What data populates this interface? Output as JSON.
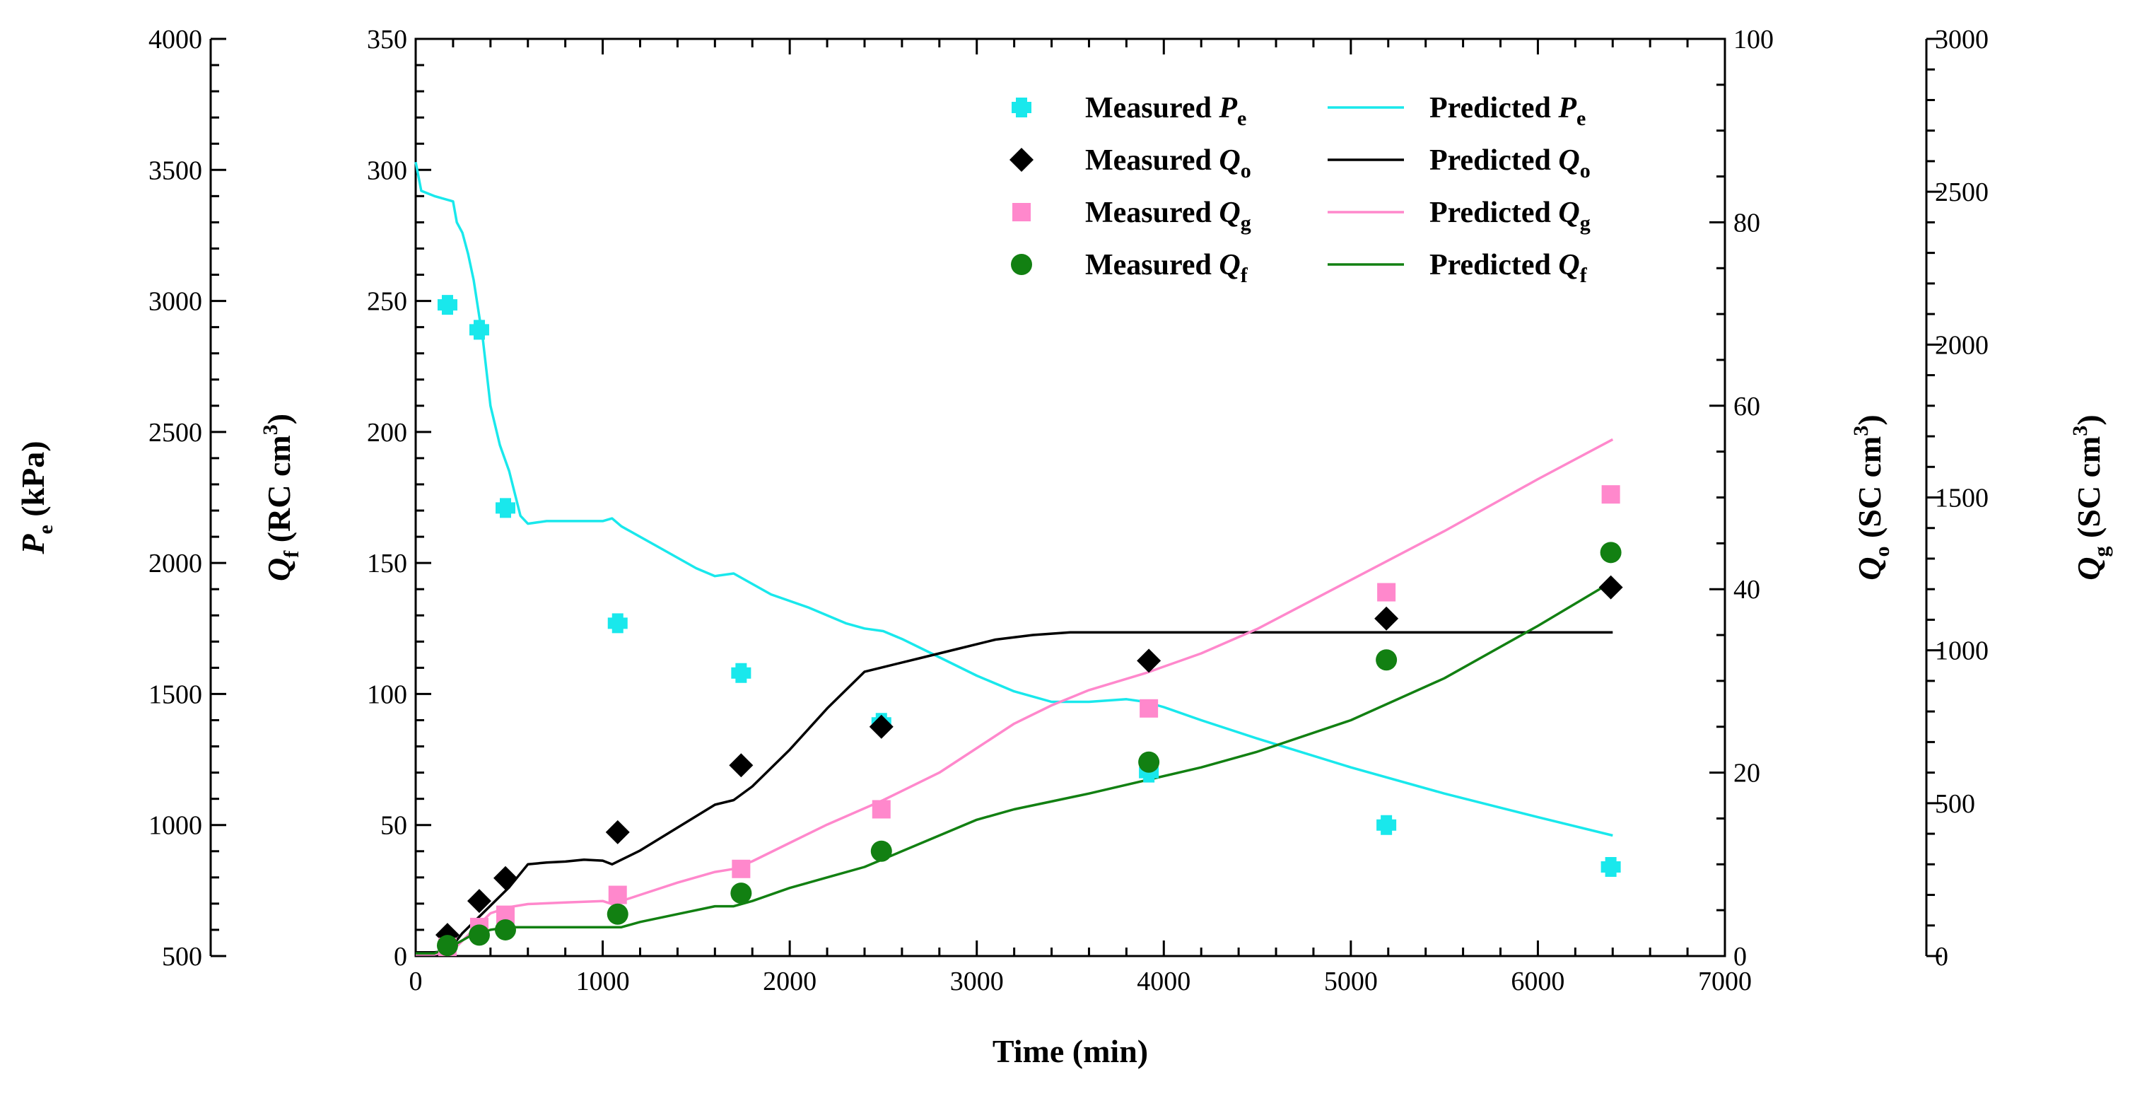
{
  "chart_data": {
    "type": "scatter+line",
    "x_axis": {
      "label": "Time (min)",
      "range": [
        0,
        7000
      ],
      "ticks": [
        0,
        1000,
        2000,
        3000,
        4000,
        5000,
        6000,
        7000
      ],
      "minor_step": 200
    },
    "axes": {
      "Pe": {
        "label_main": "P",
        "label_sub": "e",
        "label_unit": " (kPa)",
        "range": [
          500,
          4000
        ],
        "ticks": [
          500,
          1000,
          1500,
          2000,
          2500,
          3000,
          3500,
          4000
        ],
        "minor_step": 100,
        "side": "left-outer"
      },
      "Qf": {
        "label_main": "Q",
        "label_sub": "f",
        "label_unit": " (RC cm",
        "label_sup": "3",
        "label_close": ")",
        "range": [
          0,
          350
        ],
        "ticks": [
          0,
          50,
          100,
          150,
          200,
          250,
          300,
          350
        ],
        "minor_step": 10,
        "side": "left"
      },
      "Qo": {
        "label_main": "Q",
        "label_sub": "o",
        "label_unit": " (SC cm",
        "label_sup": "3",
        "label_close": ")",
        "range": [
          0,
          100
        ],
        "ticks": [
          0,
          20,
          40,
          60,
          80,
          100
        ],
        "minor_step": 5,
        "side": "right"
      },
      "Qg": {
        "label_main": "Q",
        "label_sub": "g",
        "label_unit": " (SC cm",
        "label_sup": "3",
        "label_close": ")",
        "range": [
          0,
          3000
        ],
        "ticks": [
          0,
          500,
          1000,
          1500,
          2000,
          2500,
          3000
        ],
        "minor_step": 100,
        "side": "right-outer"
      }
    },
    "legend": {
      "placement": "top-right",
      "entries": [
        {
          "key": "mPe",
          "text": "Measured ",
          "sym": "P",
          "sub": "e"
        },
        {
          "key": "pPe",
          "text": "Predicted ",
          "sym": "P",
          "sub": "e"
        },
        {
          "key": "mQo",
          "text": "Measured ",
          "sym": "Q",
          "sub": "o"
        },
        {
          "key": "pQo",
          "text": "Predicted ",
          "sym": "Q",
          "sub": "o"
        },
        {
          "key": "mQg",
          "text": "Measured ",
          "sym": "Q",
          "sub": "g"
        },
        {
          "key": "pQg",
          "text": "Predicted ",
          "sym": "Q",
          "sub": "g"
        },
        {
          "key": "mQf",
          "text": "Measured ",
          "sym": "Q",
          "sub": "f"
        },
        {
          "key": "pQf",
          "text": "Predicted ",
          "sym": "Q",
          "sub": "f"
        }
      ]
    },
    "colors": {
      "Pe": "#19e8ec",
      "Qo": "#000000",
      "Qg": "#ff88cc",
      "Qf": "#128012"
    },
    "measured": {
      "Pe": {
        "axis": "Pe",
        "marker": "plus",
        "x": [
          170,
          340,
          480,
          1080,
          1740,
          2490,
          3920,
          5190,
          6390
        ],
        "y": [
          2985,
          2890,
          2210,
          1770,
          1580,
          1390,
          1200,
          1000,
          840
        ]
      },
      "Qo": {
        "axis": "Qo",
        "marker": "diamond",
        "x": [
          170,
          340,
          480,
          1080,
          1740,
          2490,
          3920,
          5190,
          6390
        ],
        "y": [
          2.3,
          6.0,
          8.5,
          13.5,
          20.8,
          25.0,
          32.2,
          36.8,
          40.2
        ]
      },
      "Qg": {
        "axis": "Qg",
        "marker": "square",
        "x": [
          170,
          340,
          480,
          1080,
          1740,
          2490,
          3920,
          5190,
          6390
        ],
        "y": [
          30,
          95,
          135,
          200,
          285,
          480,
          810,
          1190,
          1510
        ]
      },
      "Qf": {
        "axis": "Qf",
        "marker": "circle",
        "x": [
          170,
          340,
          480,
          1080,
          1740,
          2490,
          3920,
          5190,
          6390
        ],
        "y": [
          4,
          8,
          10,
          16,
          24,
          40,
          74,
          113,
          154
        ]
      }
    },
    "predicted": {
      "Pe": {
        "axis": "Pe",
        "x": [
          0,
          30,
          100,
          200,
          220,
          250,
          280,
          310,
          360,
          400,
          450,
          500,
          560,
          600,
          700,
          800,
          1000,
          1050,
          1100,
          1300,
          1500,
          1600,
          1700,
          1900,
          2100,
          2300,
          2400,
          2500,
          2600,
          2800,
          3000,
          3200,
          3400,
          3600,
          3800,
          3900,
          4000,
          4200,
          4500,
          5000,
          5500,
          6000,
          6400
        ],
        "y": [
          3530,
          3420,
          3400,
          3380,
          3300,
          3260,
          3180,
          3080,
          2850,
          2600,
          2450,
          2350,
          2180,
          2150,
          2160,
          2160,
          2160,
          2170,
          2140,
          2060,
          1980,
          1950,
          1960,
          1880,
          1830,
          1770,
          1750,
          1740,
          1710,
          1640,
          1570,
          1510,
          1470,
          1470,
          1480,
          1470,
          1450,
          1400,
          1330,
          1220,
          1120,
          1030,
          960
        ]
      },
      "Qo": {
        "axis": "Qo",
        "x": [
          0,
          100,
          150,
          200,
          250,
          300,
          400,
          500,
          600,
          700,
          800,
          900,
          1000,
          1050,
          1100,
          1200,
          1400,
          1600,
          1700,
          1800,
          2000,
          2200,
          2400,
          2500,
          2700,
          2900,
          3100,
          3300,
          3500,
          3700,
          4000,
          4500,
          5000,
          5500,
          6000,
          6400
        ],
        "y": [
          0.4,
          0.4,
          0.5,
          1.2,
          2.5,
          3.5,
          5.5,
          7.5,
          10.0,
          10.2,
          10.3,
          10.5,
          10.4,
          10.0,
          10.5,
          11.5,
          14.0,
          16.5,
          17.0,
          18.5,
          22.5,
          27.0,
          31.0,
          31.5,
          32.5,
          33.5,
          34.5,
          35.0,
          35.3,
          35.3,
          35.3,
          35.3,
          35.3,
          35.3,
          35.3,
          35.3
        ]
      },
      "Qg": {
        "axis": "Qg",
        "x": [
          0,
          100,
          200,
          300,
          400,
          500,
          600,
          800,
          1000,
          1050,
          1100,
          1200,
          1400,
          1600,
          1700,
          1800,
          2000,
          2200,
          2500,
          2800,
          3000,
          3200,
          3400,
          3600,
          3900,
          4200,
          4500,
          5000,
          5500,
          6000,
          6400
        ],
        "y": [
          5,
          5,
          20,
          80,
          140,
          160,
          170,
          175,
          180,
          170,
          180,
          200,
          240,
          275,
          285,
          310,
          370,
          430,
          510,
          600,
          680,
          760,
          820,
          870,
          925,
          990,
          1070,
          1230,
          1390,
          1560,
          1690
        ]
      },
      "Qf": {
        "axis": "Qf",
        "x": [
          0,
          100,
          200,
          300,
          400,
          500,
          600,
          800,
          1000,
          1100,
          1200,
          1400,
          1600,
          1700,
          1800,
          2000,
          2200,
          2400,
          2600,
          2800,
          3000,
          3200,
          3400,
          3600,
          3900,
          4200,
          4500,
          5000,
          5500,
          6000,
          6400
        ],
        "y": [
          1,
          1,
          4,
          8,
          10,
          11,
          11,
          11,
          11,
          11,
          13,
          16,
          19,
          19,
          21,
          26,
          30,
          34,
          40,
          46,
          52,
          56,
          59,
          62,
          67,
          72,
          78,
          90,
          106,
          126,
          143
        ]
      }
    }
  }
}
